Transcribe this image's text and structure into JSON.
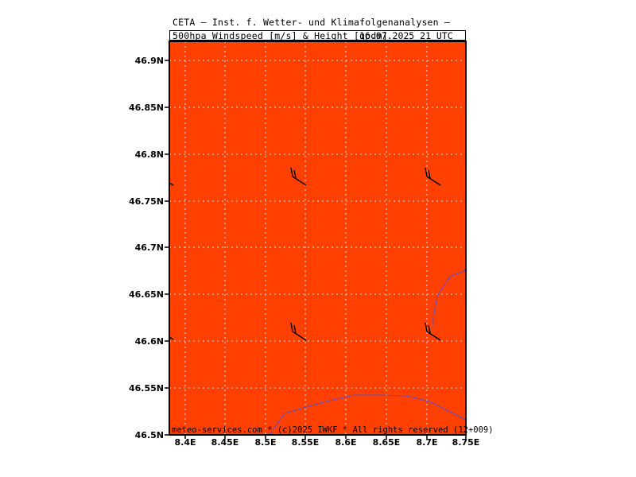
{
  "header": {
    "title_line1": "CETA — Inst. f. Wetter- und Klimafolgenanalysen —",
    "title_line2": "500hpa Windspeed [m/s] & Height [gpdm]",
    "valid_time": "16.07.2025 21 UTC"
  },
  "map": {
    "fill_color": "#ff4000",
    "grid_color": "#c8c8c8",
    "border_color": "#5a4fd0",
    "lat_labels": [
      "46.9N",
      "46.85N",
      "46.8N",
      "46.75N",
      "46.7N",
      "46.65N",
      "46.6N",
      "46.55N",
      "46.5N"
    ],
    "lon_labels": [
      "8.4E",
      "8.45E",
      "8.5E",
      "8.55E",
      "8.6E",
      "8.65E",
      "8.7E",
      "8.75E"
    ],
    "wind_barbs": [
      "wind-barb",
      "wind-barb",
      "wind-barb",
      "wind-barb"
    ]
  },
  "footer": {
    "text": "meteo-services.com * (c)2025 IWKF * All rights reserved (12+009)"
  }
}
